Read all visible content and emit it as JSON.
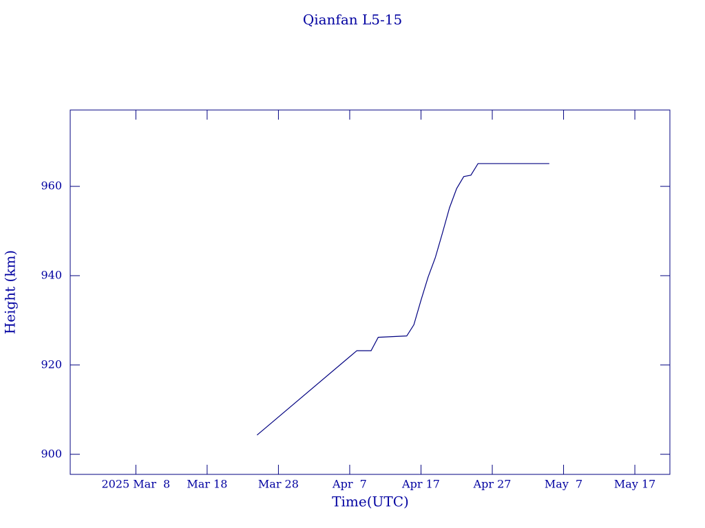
{
  "chart_data": {
    "type": "line",
    "title": "Qianfan L5-15",
    "x_label": "Time(UTC)",
    "y_label": "Height (km)",
    "x": [
      "2025-03-25",
      "2025-04-08",
      "2025-04-10",
      "2025-04-11",
      "2025-04-15",
      "2025-04-16",
      "2025-04-17",
      "2025-04-18",
      "2025-04-19",
      "2025-04-20",
      "2025-04-21",
      "2025-04-22",
      "2025-04-23",
      "2025-04-24",
      "2025-04-25",
      "2025-05-05"
    ],
    "series": [
      {
        "name": "Qianfan L5-15",
        "color": "#000080",
        "values": [
          904.3,
          923.2,
          923.2,
          926.2,
          926.5,
          929,
          934.5,
          939.7,
          944,
          949.5,
          955.2,
          959.5,
          962.2,
          962.5,
          965.1,
          965.1
        ]
      }
    ],
    "xlim": [
      "2025-02-26T19:00",
      "2025-05-21T22:00"
    ],
    "xticks": [
      {
        "value": "2025-03-08",
        "label": "2025 Mar  8"
      },
      {
        "value": "2025-03-18",
        "label": "Mar 18"
      },
      {
        "value": "2025-03-28",
        "label": "Mar 28"
      },
      {
        "value": "2025-04-07",
        "label": "Apr  7"
      },
      {
        "value": "2025-04-17",
        "label": "Apr 17"
      },
      {
        "value": "2025-04-27",
        "label": "Apr 27"
      },
      {
        "value": "2025-05-07",
        "label": "May  7"
      },
      {
        "value": "2025-05-17",
        "label": "May 17"
      }
    ],
    "ylim": [
      895.5,
      977.1
    ],
    "yticks": [
      900,
      920,
      940,
      960
    ],
    "grid": false
  }
}
